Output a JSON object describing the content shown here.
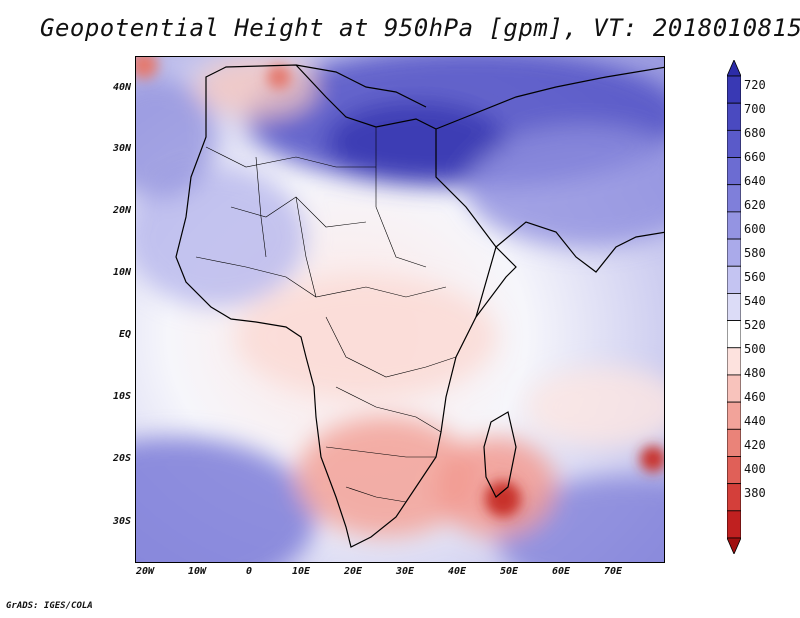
{
  "title": "Geopotential Height at 950hPa [gpm], VT: 2018010815",
  "footer": "GrADS: IGES/COLA",
  "y_axis_labels": [
    "40N",
    "30N",
    "20N",
    "10N",
    "EQ",
    "10S",
    "20S",
    "30S"
  ],
  "x_axis_labels": [
    "20W",
    "10W",
    "0",
    "10E",
    "20E",
    "30E",
    "40E",
    "50E",
    "60E",
    "70E"
  ],
  "colorbar": {
    "levels": [
      "720",
      "700",
      "680",
      "660",
      "640",
      "620",
      "600",
      "580",
      "560",
      "540",
      "520",
      "500",
      "480",
      "460",
      "440",
      "420",
      "400",
      "380"
    ],
    "colors": [
      "#2c2ca8",
      "#3939b4",
      "#4a4ac0",
      "#5a5ac9",
      "#6c6cd2",
      "#7f7fda",
      "#9494e2",
      "#aaaaea",
      "#c4c4f2",
      "#dcdcf7",
      "#ffffff",
      "#fde2de",
      "#f8c3bc",
      "#f2a39a",
      "#ea8379",
      "#e06058",
      "#d43f3a",
      "#c02020",
      "#a01010"
    ]
  },
  "map": {
    "domain_lon": [
      -21,
      81
    ],
    "domain_lat": [
      -37,
      45
    ]
  }
}
